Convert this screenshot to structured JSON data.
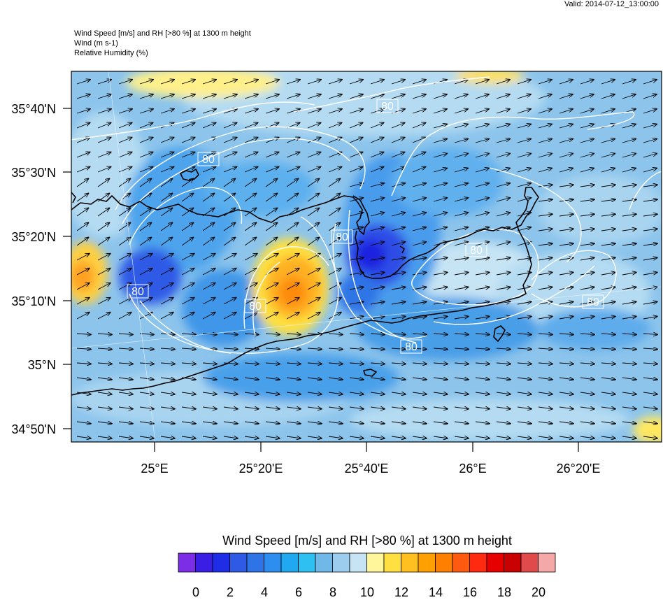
{
  "valid_label": "Valid: 2014-07-12_13:00:00",
  "titles": {
    "line1": "Wind Speed [m/s] and RH [>80 %] at 1300 m height",
    "line2": "Wind   (m s-1)",
    "line3": "Relative Humidity   (%)"
  },
  "lat_labels": [
    "35°40'N",
    "35°30'N",
    "35°20'N",
    "35°10'N",
    "35°N",
    "34°50'N"
  ],
  "lon_labels": [
    "25°E",
    "25°20'E",
    "25°40'E",
    "26°E",
    "26°20'E"
  ],
  "contour_label": "80",
  "colorbar": {
    "title": "Wind Speed [m/s] and RH [>80 %] at 1300 m height",
    "colors": [
      "#7b2ee6",
      "#3a1ee6",
      "#1f2ee6",
      "#2e5ae6",
      "#2e74e6",
      "#2e8ef0",
      "#20a8f0",
      "#2ec0f0",
      "#70b8e8",
      "#9ccdee",
      "#c6e4f4",
      "#fff59a",
      "#ffe040",
      "#ffc020",
      "#ffa000",
      "#ff8000",
      "#ff5a10",
      "#ff2a10",
      "#e60000",
      "#c80000",
      "#e04a4a",
      "#f4a8a8"
    ],
    "tick_labels": [
      "0",
      "2",
      "4",
      "6",
      "8",
      "10",
      "12",
      "14",
      "16",
      "18",
      "20"
    ]
  },
  "colors": {
    "coastline": "#000000",
    "contour": "#ffffff",
    "arrow": "#000000",
    "background_sea": "#8cc4ec"
  }
}
